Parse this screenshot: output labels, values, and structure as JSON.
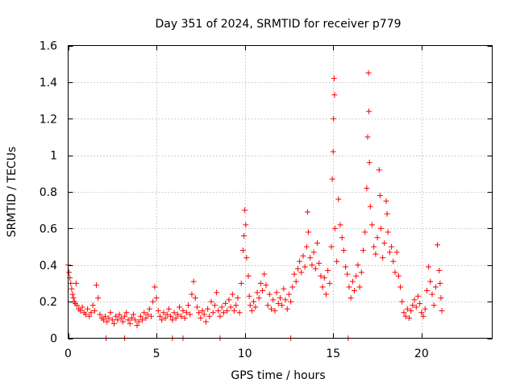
{
  "chart_data": {
    "type": "scatter",
    "title": "Day 351 of 2024, SRMTID for receiver p779",
    "xlabel": "GPS time / hours",
    "ylabel": "SRMTID / TECUs",
    "xlim": [
      0,
      24
    ],
    "ylim": [
      0,
      1.6
    ],
    "xticks": [
      0,
      5,
      10,
      15,
      20
    ],
    "xtick_labels": [
      "0",
      "5",
      "10",
      "15",
      "20"
    ],
    "yticks": [
      0,
      0.2,
      0.4,
      0.6,
      0.8,
      1,
      1.2,
      1.4,
      1.6
    ],
    "ytick_labels": [
      "0",
      "0.2",
      "0.4",
      "0.6",
      "0.8",
      "1",
      "1.2",
      "1.4",
      "1.6"
    ],
    "grid": true,
    "marker": "+",
    "color": "#ff0000",
    "series": [
      {
        "name": "SRMTID",
        "points": [
          [
            0.0,
            0.4
          ],
          [
            0.05,
            0.36
          ],
          [
            0.1,
            0.33
          ],
          [
            0.15,
            0.3
          ],
          [
            0.2,
            0.27
          ],
          [
            0.25,
            0.24
          ],
          [
            0.3,
            0.22
          ],
          [
            0.35,
            0.2
          ],
          [
            0.4,
            0.19
          ],
          [
            0.45,
            0.3
          ],
          [
            0.5,
            0.18
          ],
          [
            0.6,
            0.16
          ],
          [
            0.7,
            0.15
          ],
          [
            0.8,
            0.17
          ],
          [
            0.9,
            0.14
          ],
          [
            1.0,
            0.13
          ],
          [
            1.1,
            0.16
          ],
          [
            1.2,
            0.12
          ],
          [
            1.3,
            0.14
          ],
          [
            1.4,
            0.18
          ],
          [
            1.5,
            0.15
          ],
          [
            1.6,
            0.29
          ],
          [
            1.7,
            0.22
          ],
          [
            1.8,
            0.13
          ],
          [
            1.9,
            0.11
          ],
          [
            2.0,
            0.1
          ],
          [
            2.1,
            0.12
          ],
          [
            2.2,
            0.09
          ],
          [
            2.3,
            0.11
          ],
          [
            2.4,
            0.14
          ],
          [
            2.5,
            0.1
          ],
          [
            2.6,
            0.08
          ],
          [
            2.7,
            0.12
          ],
          [
            2.8,
            0.1
          ],
          [
            2.9,
            0.13
          ],
          [
            3.0,
            0.11
          ],
          [
            3.1,
            0.09
          ],
          [
            3.2,
            0.12
          ],
          [
            3.3,
            0.14
          ],
          [
            3.4,
            0.1
          ],
          [
            3.5,
            0.08
          ],
          [
            3.6,
            0.11
          ],
          [
            3.7,
            0.13
          ],
          [
            3.8,
            0.1
          ],
          [
            3.9,
            0.07
          ],
          [
            4.0,
            0.09
          ],
          [
            4.1,
            0.12
          ],
          [
            4.2,
            0.1
          ],
          [
            4.3,
            0.14
          ],
          [
            4.4,
            0.11
          ],
          [
            4.5,
            0.13
          ],
          [
            4.6,
            0.16
          ],
          [
            4.7,
            0.12
          ],
          [
            4.8,
            0.2
          ],
          [
            4.9,
            0.28
          ],
          [
            5.0,
            0.22
          ],
          [
            5.1,
            0.15
          ],
          [
            5.2,
            0.12
          ],
          [
            5.3,
            0.1
          ],
          [
            5.4,
            0.14
          ],
          [
            5.5,
            0.11
          ],
          [
            5.6,
            0.13
          ],
          [
            5.7,
            0.16
          ],
          [
            5.8,
            0.12
          ],
          [
            5.9,
            0.1
          ],
          [
            6.0,
            0.14
          ],
          [
            6.1,
            0.11
          ],
          [
            6.2,
            0.13
          ],
          [
            6.3,
            0.17
          ],
          [
            6.4,
            0.12
          ],
          [
            6.5,
            0.15
          ],
          [
            6.6,
            0.11
          ],
          [
            6.7,
            0.14
          ],
          [
            6.8,
            0.18
          ],
          [
            6.9,
            0.13
          ],
          [
            7.0,
            0.24
          ],
          [
            7.1,
            0.31
          ],
          [
            7.2,
            0.22
          ],
          [
            7.3,
            0.17
          ],
          [
            7.4,
            0.14
          ],
          [
            7.5,
            0.11
          ],
          [
            7.6,
            0.15
          ],
          [
            7.7,
            0.13
          ],
          [
            7.8,
            0.09
          ],
          [
            7.9,
            0.16
          ],
          [
            8.0,
            0.12
          ],
          [
            8.1,
            0.2
          ],
          [
            8.2,
            0.14
          ],
          [
            8.3,
            0.18
          ],
          [
            8.4,
            0.25
          ],
          [
            8.5,
            0.15
          ],
          [
            8.6,
            0.12
          ],
          [
            8.7,
            0.17
          ],
          [
            8.8,
            0.14
          ],
          [
            8.9,
            0.19
          ],
          [
            9.0,
            0.15
          ],
          [
            9.1,
            0.21
          ],
          [
            9.2,
            0.17
          ],
          [
            9.3,
            0.24
          ],
          [
            9.4,
            0.15
          ],
          [
            9.5,
            0.18
          ],
          [
            9.6,
            0.22
          ],
          [
            9.7,
            0.14
          ],
          [
            9.8,
            0.3
          ],
          [
            9.9,
            0.48
          ],
          [
            9.95,
            0.56
          ],
          [
            10.0,
            0.7
          ],
          [
            10.05,
            0.62
          ],
          [
            10.1,
            0.44
          ],
          [
            10.2,
            0.34
          ],
          [
            10.25,
            0.23
          ],
          [
            10.3,
            0.18
          ],
          [
            10.4,
            0.15
          ],
          [
            10.5,
            0.2
          ],
          [
            10.6,
            0.17
          ],
          [
            10.7,
            0.25
          ],
          [
            10.8,
            0.22
          ],
          [
            10.9,
            0.3
          ],
          [
            11.0,
            0.26
          ],
          [
            11.1,
            0.35
          ],
          [
            11.2,
            0.29
          ],
          [
            11.3,
            0.18
          ],
          [
            11.4,
            0.24
          ],
          [
            11.5,
            0.16
          ],
          [
            11.6,
            0.21
          ],
          [
            11.7,
            0.15
          ],
          [
            11.8,
            0.25
          ],
          [
            11.9,
            0.19
          ],
          [
            12.0,
            0.22
          ],
          [
            12.1,
            0.18
          ],
          [
            12.2,
            0.27
          ],
          [
            12.3,
            0.21
          ],
          [
            12.4,
            0.16
          ],
          [
            12.5,
            0.24
          ],
          [
            12.6,
            0.2
          ],
          [
            12.7,
            0.28
          ],
          [
            12.8,
            0.35
          ],
          [
            12.9,
            0.31
          ],
          [
            13.0,
            0.38
          ],
          [
            13.1,
            0.42
          ],
          [
            13.2,
            0.36
          ],
          [
            13.3,
            0.45
          ],
          [
            13.4,
            0.39
          ],
          [
            13.5,
            0.5
          ],
          [
            13.55,
            0.69
          ],
          [
            13.6,
            0.58
          ],
          [
            13.7,
            0.44
          ],
          [
            13.8,
            0.4
          ],
          [
            13.9,
            0.47
          ],
          [
            14.0,
            0.38
          ],
          [
            14.1,
            0.52
          ],
          [
            14.2,
            0.41
          ],
          [
            14.3,
            0.34
          ],
          [
            14.4,
            0.28
          ],
          [
            14.5,
            0.33
          ],
          [
            14.6,
            0.24
          ],
          [
            14.7,
            0.37
          ],
          [
            14.8,
            0.3
          ],
          [
            14.9,
            0.5
          ],
          [
            14.95,
            0.87
          ],
          [
            15.0,
            1.02
          ],
          [
            15.02,
            1.2
          ],
          [
            15.05,
            1.42
          ],
          [
            15.08,
            1.33
          ],
          [
            15.1,
            0.6
          ],
          [
            15.2,
            0.42
          ],
          [
            15.3,
            0.76
          ],
          [
            15.4,
            0.62
          ],
          [
            15.5,
            0.55
          ],
          [
            15.6,
            0.48
          ],
          [
            15.7,
            0.39
          ],
          [
            15.8,
            0.35
          ],
          [
            15.9,
            0.28
          ],
          [
            16.0,
            0.22
          ],
          [
            16.1,
            0.31
          ],
          [
            16.2,
            0.26
          ],
          [
            16.3,
            0.34
          ],
          [
            16.4,
            0.4
          ],
          [
            16.5,
            0.28
          ],
          [
            16.6,
            0.36
          ],
          [
            16.7,
            0.48
          ],
          [
            16.8,
            0.58
          ],
          [
            16.9,
            0.82
          ],
          [
            16.95,
            1.1
          ],
          [
            17.0,
            1.45
          ],
          [
            17.02,
            1.24
          ],
          [
            17.05,
            0.96
          ],
          [
            17.1,
            0.72
          ],
          [
            17.2,
            0.62
          ],
          [
            17.3,
            0.5
          ],
          [
            17.4,
            0.46
          ],
          [
            17.5,
            0.55
          ],
          [
            17.6,
            0.92
          ],
          [
            17.65,
            0.78
          ],
          [
            17.7,
            0.6
          ],
          [
            17.8,
            0.44
          ],
          [
            17.9,
            0.52
          ],
          [
            18.0,
            0.75
          ],
          [
            18.05,
            0.68
          ],
          [
            18.1,
            0.58
          ],
          [
            18.2,
            0.47
          ],
          [
            18.3,
            0.5
          ],
          [
            18.4,
            0.42
          ],
          [
            18.5,
            0.36
          ],
          [
            18.6,
            0.47
          ],
          [
            18.7,
            0.34
          ],
          [
            18.8,
            0.28
          ],
          [
            18.9,
            0.2
          ],
          [
            19.0,
            0.14
          ],
          [
            19.1,
            0.12
          ],
          [
            19.2,
            0.16
          ],
          [
            19.3,
            0.11
          ],
          [
            19.4,
            0.15
          ],
          [
            19.5,
            0.18
          ],
          [
            19.6,
            0.21
          ],
          [
            19.7,
            0.17
          ],
          [
            19.8,
            0.23
          ],
          [
            19.9,
            0.19
          ],
          [
            20.0,
            0.14
          ],
          [
            20.1,
            0.12
          ],
          [
            20.2,
            0.16
          ],
          [
            20.3,
            0.26
          ],
          [
            20.4,
            0.39
          ],
          [
            20.5,
            0.31
          ],
          [
            20.6,
            0.24
          ],
          [
            20.7,
            0.18
          ],
          [
            20.8,
            0.28
          ],
          [
            20.9,
            0.51
          ],
          [
            21.0,
            0.37
          ],
          [
            21.05,
            0.3
          ],
          [
            21.1,
            0.22
          ],
          [
            21.15,
            0.15
          ],
          [
            3.2,
            0.0
          ],
          [
            5.9,
            0.0
          ],
          [
            6.5,
            0.0
          ],
          [
            8.6,
            0.0
          ],
          [
            12.6,
            0.0
          ],
          [
            15.85,
            0.0
          ],
          [
            2.15,
            0.0
          ]
        ]
      }
    ]
  }
}
